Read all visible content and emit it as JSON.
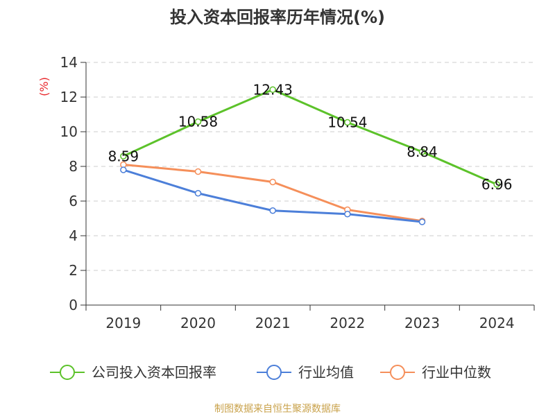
{
  "chart_data": {
    "type": "line",
    "title": "投入资本回报率历年情况(%)",
    "ylabel": "(%)",
    "ylim": [
      0,
      14
    ],
    "yticks": [
      0,
      2,
      4,
      6,
      8,
      10,
      12,
      14
    ],
    "grid": true,
    "legend_position": "bottom",
    "categories": [
      "2019",
      "2020",
      "2021",
      "2022",
      "2023",
      "2024"
    ],
    "series": [
      {
        "name": "公司投入资本回报率",
        "color": "#5cc22a",
        "values": [
          8.59,
          10.58,
          12.43,
          10.54,
          8.84,
          6.96
        ],
        "labels": [
          "8.59",
          "10.58",
          "12.43",
          "10.54",
          "8.84",
          "6.96"
        ]
      },
      {
        "name": "行业均值",
        "color": "#4c7fd9",
        "values": [
          7.8,
          6.45,
          5.45,
          5.25,
          4.8,
          null
        ]
      },
      {
        "name": "行业中位数",
        "color": "#f58f5a",
        "values": [
          8.1,
          7.7,
          7.1,
          5.5,
          4.85,
          null
        ]
      }
    ]
  },
  "source": "制图数据来自恒生聚源数据库"
}
